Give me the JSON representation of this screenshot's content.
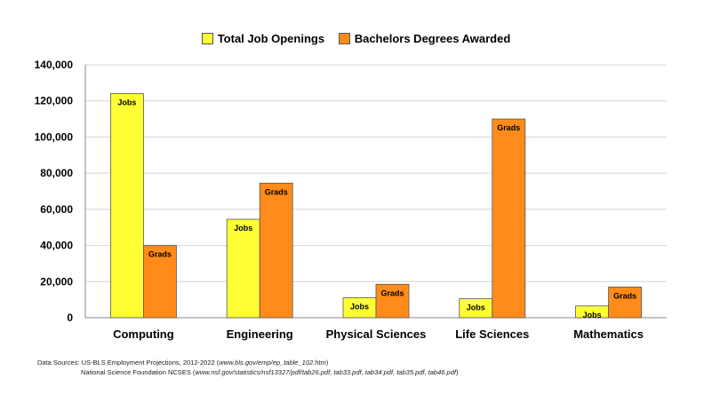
{
  "chart_data": {
    "type": "bar",
    "categories": [
      "Computing",
      "Engineering",
      "Physical Sciences",
      "Life Sciences",
      "Mathematics"
    ],
    "series": [
      {
        "name": "Total Job Openings",
        "color": "#ffff33",
        "values": [
          124000,
          54500,
          11000,
          10500,
          6500
        ],
        "bar_label": "Jobs"
      },
      {
        "name": "Bachelors Degrees Awarded",
        "color": "#ff8c1a",
        "values": [
          40000,
          74500,
          18500,
          110000,
          17000
        ],
        "bar_label": "Grads"
      }
    ],
    "yticks": [
      "0",
      "20,000",
      "40,000",
      "60,000",
      "80,000",
      "100,000",
      "120,000",
      "140,000"
    ],
    "ylim": [
      0,
      140000
    ],
    "grid": true,
    "legend_position": "top"
  },
  "sources": {
    "line1_prefix": "Data Sources: US-BLS Employment Projections, 2012-2022 (",
    "line1_url": "www.bls.gov/emp/ep_table_102.htm",
    "line1_suffix": ")",
    "line2_prefix": "National Science Foundation NCSES (",
    "line2_url": "www.nsf.gov/statistics/nsf13327/pdf/tab26.pdf, tab33.pdf, tab34.pdf, tab35.pdf, tab46.pdf",
    "line2_suffix": ")"
  }
}
